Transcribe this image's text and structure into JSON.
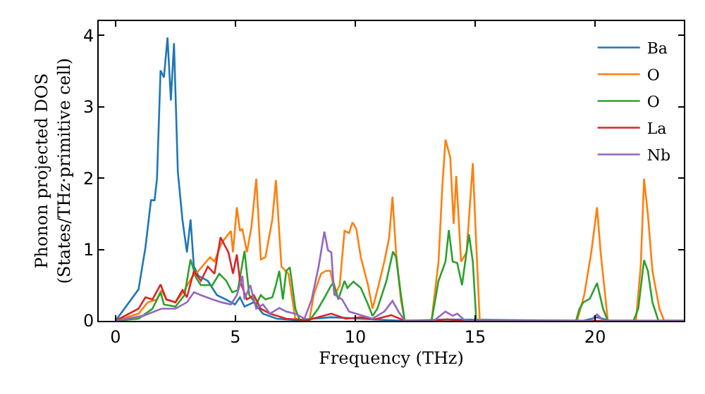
{
  "chart_data": {
    "type": "line",
    "xlabel": "Frequency (THz)",
    "ylabel": "Phonon projected DOS\n(States/THz·primitive cell)",
    "xlim": [
      -0.7,
      23.7
    ],
    "ylim": [
      0,
      4.2
    ],
    "xticks": [
      0,
      5,
      10,
      15,
      20
    ],
    "yticks": [
      0,
      1,
      2,
      3,
      4
    ],
    "grid": false,
    "legend": "top right",
    "marker": "none",
    "line_style": "solid",
    "series": [
      {
        "name": "Ba",
        "color": "#1f77b4",
        "x": [
          0,
          0.96,
          1.25,
          1.48,
          1.63,
          1.73,
          1.88,
          2.02,
          2.17,
          2.31,
          2.44,
          2.6,
          2.79,
          2.98,
          3.13,
          3.27,
          3.46,
          3.85,
          4.23,
          4.6,
          4.98,
          5.19,
          5.38,
          5.77,
          6.15,
          6.73,
          7.5,
          9.0,
          10.2,
          12.0,
          13.8,
          19.5,
          20.1,
          20.6,
          23.7
        ],
        "values": [
          0,
          0.44,
          1.03,
          1.69,
          1.69,
          1.99,
          3.51,
          3.41,
          3.97,
          3.09,
          3.89,
          2.09,
          1.42,
          0.96,
          1.42,
          0.76,
          0.63,
          0.56,
          0.36,
          0.3,
          0.23,
          0.33,
          0.2,
          0.26,
          0.1,
          0.03,
          0.01,
          0.05,
          0.03,
          0,
          0.02,
          0,
          0.05,
          0,
          0
        ]
      },
      {
        "name": "O",
        "color": "#ff7f0e",
        "x": [
          0,
          0.96,
          1.35,
          1.73,
          1.92,
          2.12,
          2.5,
          2.88,
          3.17,
          3.46,
          3.94,
          4.13,
          4.42,
          4.81,
          4.9,
          5.06,
          5.19,
          5.29,
          5.48,
          5.67,
          5.87,
          6.06,
          6.25,
          6.54,
          6.69,
          6.92,
          7.21,
          7.5,
          8.08,
          8.27,
          8.57,
          8.77,
          8.96,
          9.16,
          9.35,
          9.55,
          9.74,
          9.88,
          10.04,
          10.23,
          10.53,
          10.72,
          10.92,
          11.21,
          11.41,
          11.55,
          11.7,
          11.9,
          12.06,
          13.18,
          13.47,
          13.63,
          13.76,
          13.96,
          14.1,
          14.21,
          14.41,
          14.64,
          14.9,
          15.04,
          15.19,
          19.25,
          19.55,
          19.84,
          20.08,
          20.23,
          20.53,
          21.7,
          21.9,
          22.04,
          22.2,
          22.39,
          22.68,
          22.88,
          23.7
        ],
        "values": [
          0,
          0.1,
          0.26,
          0.3,
          0.43,
          0.3,
          0.26,
          0.43,
          0.6,
          0.7,
          0.89,
          0.83,
          1.09,
          1.26,
          0.96,
          1.59,
          1.26,
          1.29,
          0.96,
          1.32,
          1.99,
          0.86,
          0.89,
          1.42,
          1.97,
          0.76,
          0.66,
          0.03,
          0,
          0.37,
          0.66,
          0.7,
          0.7,
          0.37,
          0.5,
          1.26,
          1.23,
          1.38,
          1.29,
          0.89,
          0.5,
          0.17,
          0.43,
          0.83,
          1.16,
          1.74,
          0.96,
          0.3,
          0,
          0,
          0.83,
          1.89,
          2.54,
          2.29,
          1.36,
          2.03,
          0.83,
          0.96,
          2.21,
          1.09,
          0,
          0,
          0.37,
          0.96,
          1.59,
          0.96,
          0,
          0,
          0.76,
          1.99,
          1.49,
          0.7,
          0.17,
          0,
          0
        ]
      },
      {
        "name": "O",
        "color": "#2ca02c",
        "x": [
          0,
          0.96,
          1.54,
          1.88,
          2.02,
          2.5,
          2.88,
          3.13,
          3.37,
          3.56,
          4.04,
          4.33,
          4.62,
          4.87,
          5.1,
          5.38,
          5.58,
          5.87,
          6.06,
          6.25,
          6.54,
          6.69,
          6.83,
          6.98,
          7.12,
          7.27,
          7.5,
          7.69,
          8.08,
          8.45,
          8.72,
          9.0,
          9.1,
          9.29,
          9.55,
          9.67,
          9.92,
          10.23,
          10.53,
          10.72,
          10.92,
          11.3,
          11.57,
          11.7,
          11.9,
          12.06,
          13.18,
          13.47,
          13.76,
          13.9,
          14.06,
          14.25,
          14.45,
          14.74,
          14.9,
          15.04,
          15.08,
          19.2,
          19.35,
          19.51,
          19.78,
          20.08,
          20.33,
          20.53,
          21.6,
          21.8,
          22.04,
          22.2,
          22.39,
          22.64,
          23.7
        ],
        "values": [
          0,
          0.03,
          0.17,
          0.4,
          0.23,
          0.2,
          0.36,
          0.86,
          0.6,
          0.5,
          0.5,
          0.66,
          0.56,
          0.4,
          0.43,
          0.98,
          0.36,
          0.23,
          0.36,
          0.3,
          0.33,
          0.5,
          0.7,
          0.3,
          0.7,
          0.75,
          0.17,
          0,
          0,
          0.17,
          0.33,
          0.5,
          0.53,
          0.3,
          0.56,
          0.46,
          0.55,
          0.46,
          0.23,
          0.07,
          0.17,
          0.56,
          0.97,
          0.89,
          0.37,
          0,
          0,
          0.56,
          0.83,
          1.27,
          0.83,
          0.81,
          0.5,
          1.21,
          0.83,
          0.03,
          0,
          0,
          0.17,
          0.26,
          0.31,
          0.53,
          0.17,
          0,
          0,
          0.17,
          0.85,
          0.7,
          0.26,
          0,
          0
        ]
      },
      {
        "name": "La",
        "color": "#d62728",
        "x": [
          0,
          0.96,
          1.25,
          1.54,
          1.88,
          2.12,
          2.5,
          2.79,
          2.98,
          3.27,
          3.56,
          3.85,
          4.13,
          4.38,
          4.71,
          4.9,
          5.06,
          5.19,
          5.48,
          5.77,
          6.06,
          6.44,
          7.12,
          8.0,
          9.0,
          9.6,
          10.2,
          10.8,
          11.5,
          12.06,
          13.2,
          13.8,
          14.6,
          23.7
        ],
        "values": [
          0,
          0.17,
          0.33,
          0.3,
          0.51,
          0.3,
          0.26,
          0.43,
          0.33,
          0.7,
          0.56,
          0.76,
          0.66,
          1.17,
          0.96,
          0.66,
          0.93,
          0.56,
          0.3,
          0.36,
          0.17,
          0.1,
          0.03,
          0.01,
          0.1,
          0.03,
          0.05,
          0.02,
          0.08,
          0,
          0,
          0.02,
          0,
          0
        ]
      },
      {
        "name": "Nb",
        "color": "#9467bd",
        "x": [
          0,
          1.15,
          1.92,
          2.5,
          2.98,
          3.27,
          3.56,
          4.04,
          4.42,
          4.81,
          5.06,
          5.29,
          5.38,
          5.62,
          5.87,
          6.15,
          6.44,
          6.83,
          7.12,
          7.5,
          7.88,
          8.18,
          8.47,
          8.71,
          8.86,
          9.0,
          9.12,
          9.45,
          9.74,
          10.14,
          10.72,
          11.21,
          11.55,
          11.8,
          12.06,
          13.27,
          13.76,
          14.06,
          14.25,
          14.55,
          14.84,
          19.8,
          20.08,
          20.35,
          23.7
        ],
        "values": [
          0,
          0.07,
          0.17,
          0.17,
          0.26,
          0.4,
          0.36,
          0.3,
          0.26,
          0.23,
          0.36,
          0.63,
          0.3,
          0.5,
          0.17,
          0.23,
          0.1,
          0.18,
          0.13,
          0.1,
          0.03,
          0.3,
          0.76,
          1.25,
          0.99,
          0.96,
          0.37,
          0.3,
          0.13,
          0.09,
          0.03,
          0.13,
          0.28,
          0.13,
          0,
          0,
          0.13,
          0.07,
          0.1,
          0.01,
          0,
          0,
          0.09,
          0,
          0
        ]
      }
    ]
  }
}
